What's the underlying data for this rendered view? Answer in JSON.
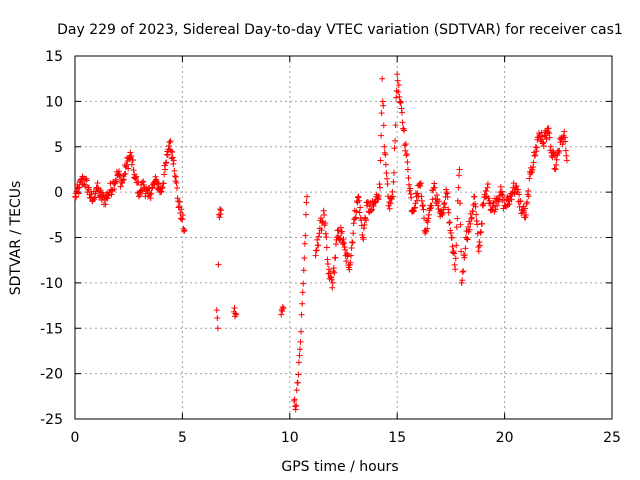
{
  "chart_data": {
    "type": "scatter",
    "title": "Day 229 of 2023, Sidereal Day-to-day VTEC variation (SDTVAR) for receiver cas1",
    "xlabel": "GPS time / hours",
    "ylabel": "SDTVAR / TECUs",
    "xlim": [
      0,
      25
    ],
    "ylim": [
      -25,
      15
    ],
    "x_ticks": [
      0,
      5,
      10,
      15,
      20,
      25
    ],
    "y_ticks": [
      15,
      10,
      5,
      0,
      -5,
      -10,
      -15,
      -20,
      -25
    ],
    "grid": true,
    "marker": "+",
    "color": "#ff0000",
    "segments": [
      [
        [
          0.0,
          -0.5
        ],
        [
          0.2,
          0.5
        ],
        [
          0.4,
          1.5
        ],
        [
          0.6,
          0.5
        ],
        [
          0.8,
          -1.0
        ],
        [
          1.0,
          0.5
        ],
        [
          1.2,
          -0.5
        ],
        [
          1.4,
          -0.8
        ],
        [
          1.6,
          0.0
        ],
        [
          1.8,
          1.0
        ],
        [
          2.0,
          2.0
        ],
        [
          2.2,
          1.0
        ],
        [
          2.4,
          3.0
        ],
        [
          2.6,
          4.0
        ],
        [
          2.8,
          1.5
        ],
        [
          3.0,
          0.0
        ],
        [
          3.2,
          0.8
        ],
        [
          3.4,
          -0.5
        ],
        [
          3.6,
          0.5
        ],
        [
          3.8,
          1.2
        ],
        [
          4.0,
          0.0
        ],
        [
          4.2,
          2.5
        ],
        [
          4.4,
          5.5
        ],
        [
          4.6,
          3.5
        ],
        [
          4.8,
          -1.0
        ],
        [
          5.0,
          -3.0
        ],
        [
          5.1,
          -4.2
        ]
      ],
      [
        [
          6.6,
          -13.0
        ],
        [
          6.65,
          -15.0
        ],
        [
          6.7,
          -2.5
        ],
        [
          6.8,
          -2.0
        ],
        [
          7.4,
          -13.2
        ],
        [
          7.5,
          -13.5
        ],
        [
          9.6,
          -13.5
        ],
        [
          9.7,
          -12.8
        ]
      ],
      [
        [
          10.2,
          -23.0
        ],
        [
          10.3,
          -23.5
        ],
        [
          10.35,
          -21.0
        ],
        [
          10.45,
          -18.0
        ],
        [
          10.5,
          -16.5
        ],
        [
          10.8,
          -0.5
        ]
      ],
      [
        [
          11.2,
          -7.0
        ],
        [
          11.4,
          -4.0
        ],
        [
          11.6,
          -2.5
        ],
        [
          11.8,
          -9.0
        ],
        [
          12.0,
          -10.0
        ],
        [
          12.2,
          -5.0
        ],
        [
          12.4,
          -4.5
        ],
        [
          12.6,
          -7.0
        ],
        [
          12.8,
          -8.0
        ],
        [
          13.0,
          -3.0
        ],
        [
          13.2,
          -0.5
        ],
        [
          13.4,
          -5.0
        ],
        [
          13.6,
          -1.5
        ],
        [
          13.8,
          -2.0
        ],
        [
          14.0,
          -1.0
        ],
        [
          14.2,
          0.5
        ],
        [
          14.3,
          12.5
        ],
        [
          14.4,
          5.0
        ],
        [
          14.6,
          -1.5
        ],
        [
          14.8,
          -0.5
        ],
        [
          15.0,
          13.0
        ],
        [
          15.1,
          10.5
        ],
        [
          15.3,
          7.0
        ],
        [
          15.5,
          2.5
        ],
        [
          15.7,
          -2.0
        ],
        [
          15.9,
          -0.5
        ],
        [
          16.1,
          1.0
        ],
        [
          16.3,
          -4.5
        ],
        [
          16.5,
          -2.0
        ],
        [
          16.7,
          0.5
        ],
        [
          16.9,
          -1.5
        ],
        [
          17.1,
          -2.5
        ],
        [
          17.3,
          0.0
        ],
        [
          17.5,
          -4.5
        ],
        [
          17.7,
          -8.5
        ],
        [
          17.9,
          2.5
        ],
        [
          18.0,
          -10.0
        ],
        [
          18.2,
          -5.0
        ],
        [
          18.4,
          -3.5
        ],
        [
          18.6,
          -0.5
        ],
        [
          18.8,
          -6.5
        ],
        [
          19.0,
          -1.5
        ],
        [
          19.2,
          0.5
        ],
        [
          19.4,
          -2.0
        ],
        [
          19.6,
          -1.0
        ],
        [
          19.8,
          0.0
        ],
        [
          20.0,
          -1.5
        ],
        [
          20.2,
          -1.0
        ],
        [
          20.4,
          0.5
        ],
        [
          20.6,
          0.0
        ],
        [
          20.8,
          -2.0
        ],
        [
          21.0,
          -2.5
        ],
        [
          21.2,
          2.0
        ],
        [
          21.4,
          4.0
        ],
        [
          21.6,
          6.5
        ],
        [
          21.8,
          5.5
        ],
        [
          22.0,
          7.0
        ],
        [
          22.2,
          4.0
        ],
        [
          22.4,
          3.0
        ],
        [
          22.6,
          5.5
        ],
        [
          22.8,
          6.0
        ],
        [
          22.9,
          3.5
        ]
      ]
    ]
  }
}
